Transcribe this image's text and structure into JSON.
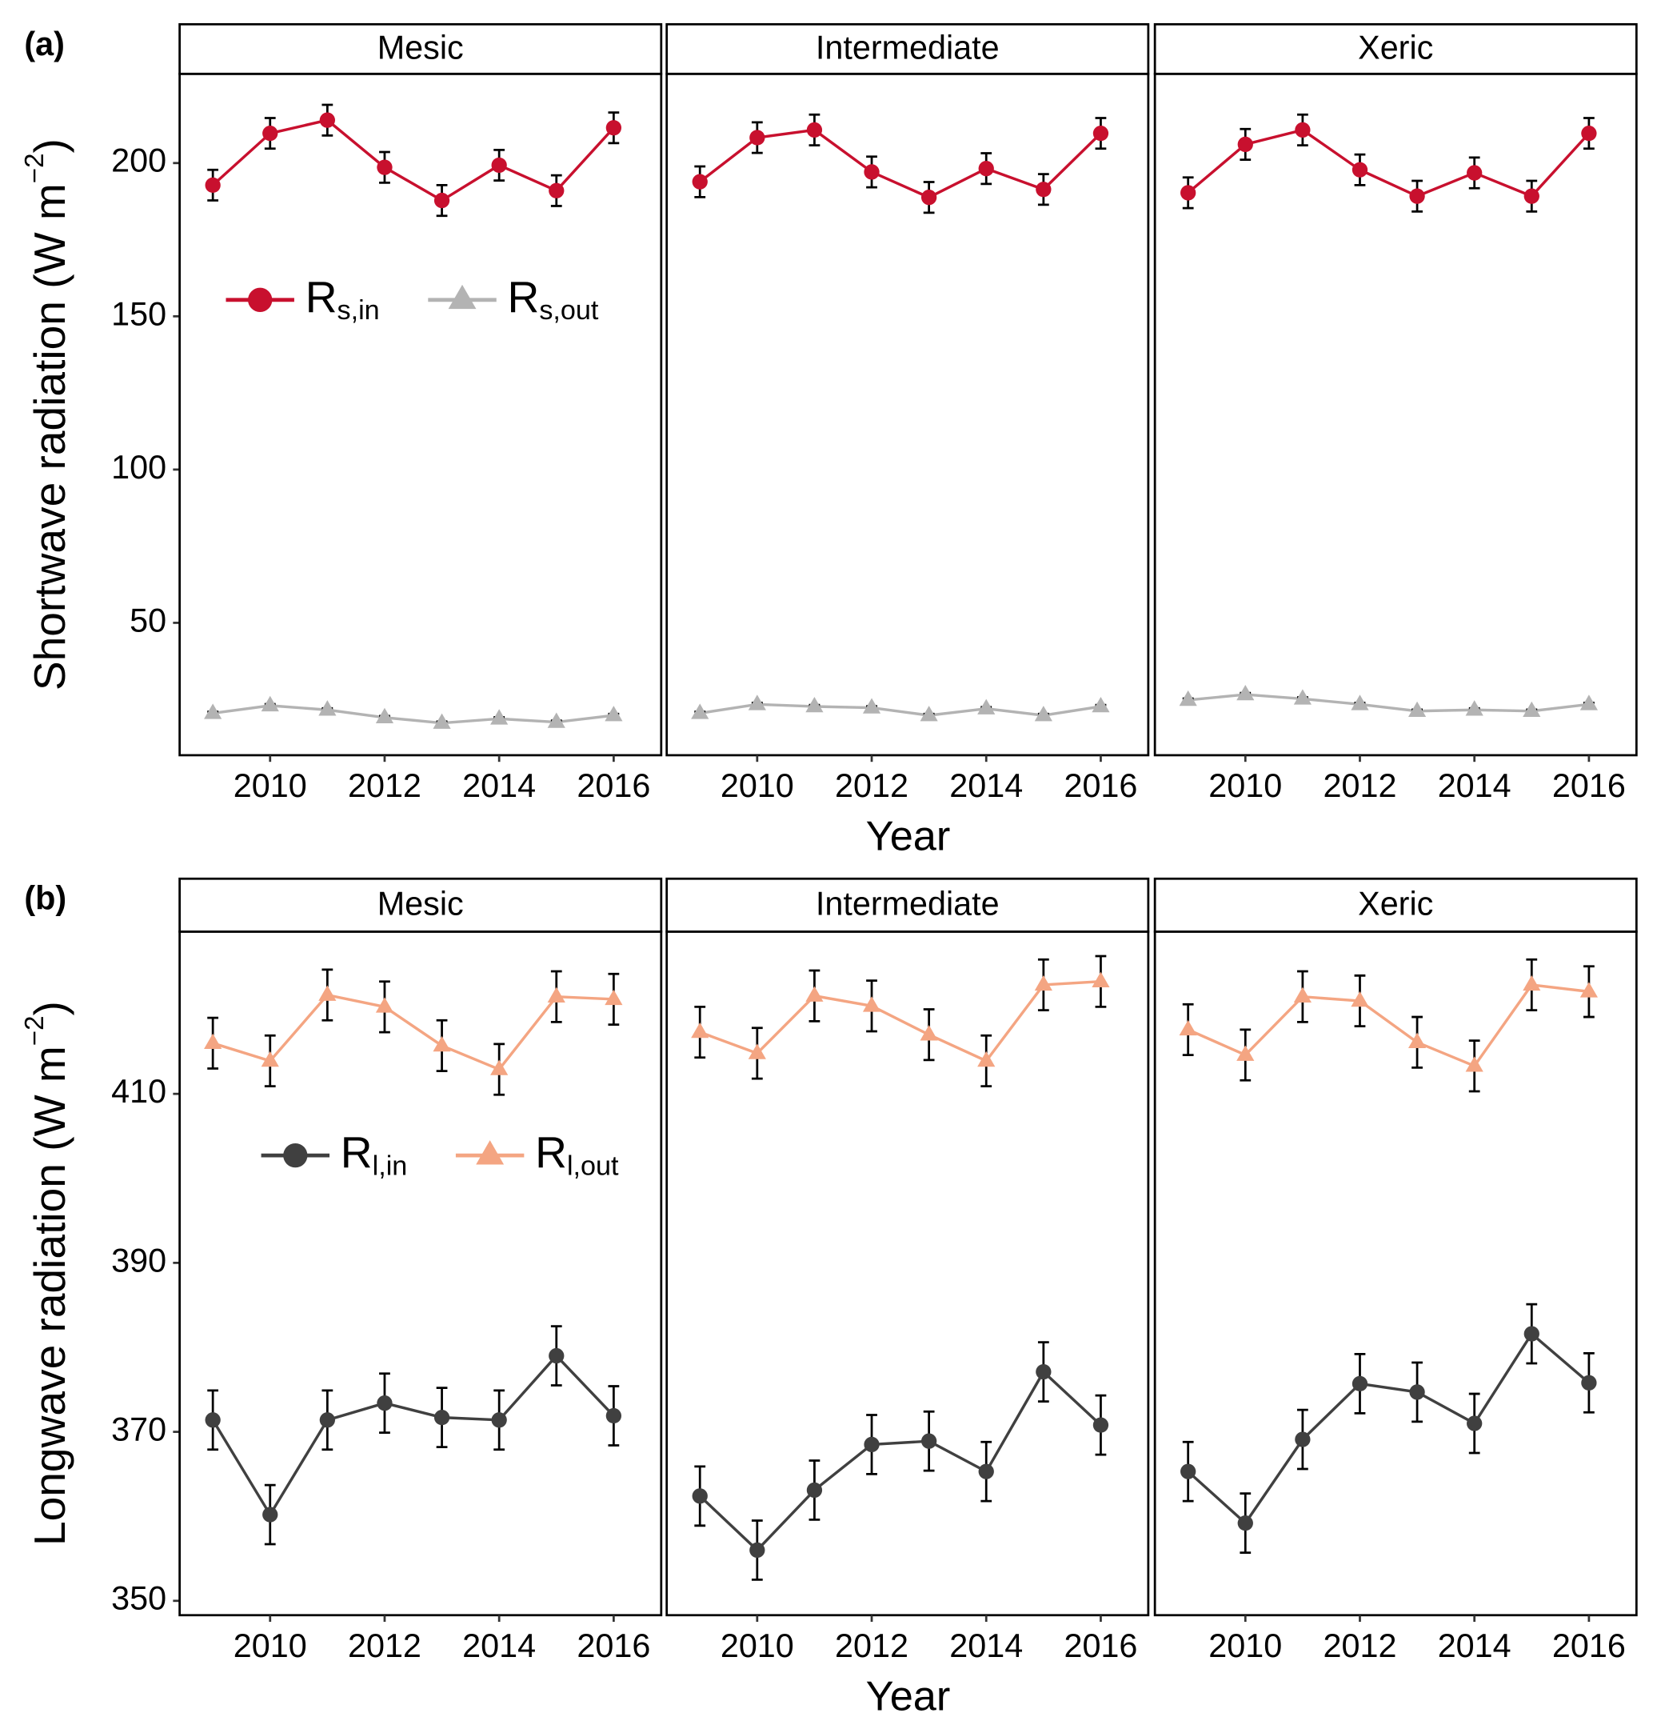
{
  "chart_data": [
    {
      "type": "line",
      "panel_label": "(a)",
      "ylabel": "Shortwave  radiation (W m−2)",
      "xlabel": "Year",
      "x": [
        2009,
        2010,
        2011,
        2012,
        2013,
        2014,
        2015,
        2016
      ],
      "xlim": [
        2008.42,
        2016.83
      ],
      "xticks": [
        2010,
        2012,
        2014,
        2016
      ],
      "ylim": [
        6.8,
        229.1
      ],
      "yticks": [
        50,
        100,
        150,
        200
      ],
      "legend": [
        {
          "name": "Rs,in",
          "color": "#c8102e",
          "marker": "circle"
        },
        {
          "name": "Rs,out",
          "color": "#b3b3b3",
          "marker": "triangle"
        }
      ],
      "facets": [
        {
          "title": "Mesic",
          "series": [
            {
              "color": "#c8102e",
              "marker": "circle",
              "values": [
                192.8,
                209.7,
                214.0,
                198.6,
                187.8,
                199.3,
                191.0,
                211.5
              ],
              "errors": [
                5,
                5,
                5,
                5,
                5,
                5,
                5,
                5
              ]
            },
            {
              "color": "#b3b3b3",
              "marker": "triangle",
              "values": [
                20.5,
                23.0,
                21.6,
                19.1,
                17.3,
                18.7,
                17.6,
                19.8
              ],
              "errors": [
                0.5,
                0.5,
                0.5,
                0.5,
                0.5,
                0.5,
                0.5,
                0.5
              ]
            }
          ]
        },
        {
          "title": "Intermediate",
          "series": [
            {
              "color": "#c8102e",
              "marker": "circle",
              "values": [
                193.9,
                208.3,
                210.8,
                197.1,
                188.8,
                198.2,
                191.4,
                209.7
              ],
              "errors": [
                5,
                5,
                5,
                5,
                5,
                5,
                5,
                5
              ]
            },
            {
              "color": "#b3b3b3",
              "marker": "triangle",
              "values": [
                20.5,
                23.4,
                22.7,
                22.3,
                19.8,
                22.0,
                19.8,
                22.7
              ],
              "errors": [
                0.5,
                0.5,
                0.5,
                0.5,
                0.5,
                0.5,
                0.5,
                0.5
              ]
            }
          ]
        },
        {
          "title": "Xeric",
          "series": [
            {
              "color": "#c8102e",
              "marker": "circle",
              "values": [
                190.3,
                206.1,
                210.8,
                197.8,
                189.2,
                196.8,
                189.2,
                209.7
              ],
              "errors": [
                5,
                5,
                5,
                5,
                5,
                5,
                5,
                5
              ]
            },
            {
              "color": "#b3b3b3",
              "marker": "triangle",
              "values": [
                24.8,
                26.6,
                25.2,
                23.4,
                21.2,
                21.6,
                21.2,
                23.4
              ],
              "errors": [
                0.5,
                0.5,
                0.5,
                0.5,
                0.5,
                0.5,
                0.5,
                0.5
              ]
            }
          ]
        }
      ]
    },
    {
      "type": "line",
      "panel_label": "(b)",
      "ylabel": "Longwave radiation (W m−2)",
      "xlabel": "Year",
      "x": [
        2009,
        2010,
        2011,
        2012,
        2013,
        2014,
        2015,
        2016
      ],
      "xlim": [
        2008.42,
        2016.83
      ],
      "xticks": [
        2010,
        2012,
        2014,
        2016
      ],
      "ylim": [
        348.3,
        429.2
      ],
      "yticks": [
        350,
        370,
        390,
        410
      ],
      "legend": [
        {
          "name": "Rl,in",
          "color": "#404040",
          "marker": "circle"
        },
        {
          "name": "Rl,out",
          "color": "#f4a582",
          "marker": "triangle"
        }
      ],
      "facets": [
        {
          "title": "Mesic",
          "series": [
            {
              "color": "#404040",
              "marker": "circle",
              "values": [
                371.4,
                360.2,
                371.4,
                373.4,
                371.7,
                371.4,
                379.0,
                371.9
              ],
              "errors": [
                3.5,
                3.5,
                3.5,
                3.5,
                3.5,
                3.5,
                3.5,
                3.5
              ]
            },
            {
              "color": "#f4a582",
              "marker": "triangle",
              "values": [
                416.0,
                413.9,
                421.7,
                420.3,
                415.7,
                412.9,
                421.5,
                421.2
              ],
              "errors": [
                3,
                3,
                3,
                3,
                3,
                3,
                3,
                3
              ]
            }
          ]
        },
        {
          "title": "Intermediate",
          "series": [
            {
              "color": "#404040",
              "marker": "circle",
              "values": [
                362.4,
                356.0,
                363.1,
                368.5,
                368.9,
                365.3,
                377.1,
                370.8
              ],
              "errors": [
                3.5,
                3.5,
                3.5,
                3.5,
                3.5,
                3.5,
                3.5,
                3.5
              ]
            },
            {
              "color": "#f4a582",
              "marker": "triangle",
              "values": [
                417.3,
                414.8,
                421.6,
                420.4,
                417.0,
                413.9,
                422.9,
                423.3
              ],
              "errors": [
                3,
                3,
                3,
                3,
                3,
                3,
                3,
                3
              ]
            }
          ]
        },
        {
          "title": "Xeric",
          "series": [
            {
              "color": "#404040",
              "marker": "circle",
              "values": [
                365.3,
                359.2,
                369.1,
                375.7,
                374.7,
                371.0,
                381.6,
                375.8
              ],
              "errors": [
                3.5,
                3.5,
                3.5,
                3.5,
                3.5,
                3.5,
                3.5,
                3.5
              ]
            },
            {
              "color": "#f4a582",
              "marker": "triangle",
              "values": [
                417.6,
                414.6,
                421.5,
                421.0,
                416.1,
                413.3,
                422.9,
                422.1
              ],
              "errors": [
                3,
                3,
                3,
                3,
                3,
                3,
                3,
                3
              ]
            }
          ]
        }
      ]
    }
  ]
}
